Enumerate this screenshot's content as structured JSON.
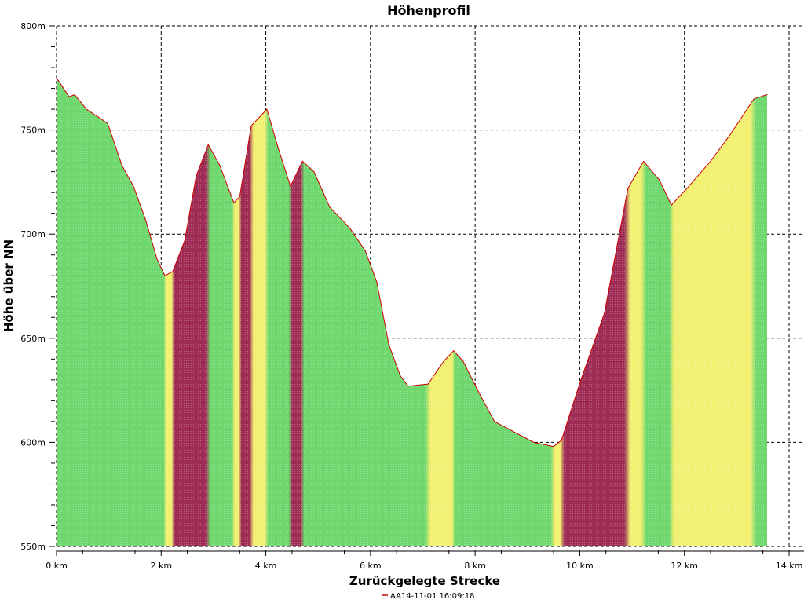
{
  "chart_data": {
    "type": "area",
    "title": "Höhenprofil",
    "xlabel": "Zurückgelegte Strecke",
    "ylabel": "Höhe über NN",
    "xlim": [
      0,
      14
    ],
    "ylim": [
      550,
      800
    ],
    "grid": true,
    "x_ticks": [
      "0 km",
      "2 km",
      "4 km",
      "6 km",
      "8 km",
      "10 km",
      "12 km",
      "14 km"
    ],
    "x_tick_values": [
      0,
      2,
      4,
      6,
      8,
      10,
      12,
      14
    ],
    "y_ticks": [
      "550m",
      "600m",
      "650m",
      "700m",
      "750m",
      "800m"
    ],
    "y_tick_values": [
      550,
      600,
      650,
      700,
      750,
      800
    ],
    "legend": {
      "position": "bottom",
      "entries": [
        {
          "label": "AA14-11-01 16:09:18",
          "color": "#cc0000"
        }
      ]
    },
    "series": [
      {
        "name": "AA14-11-01 16:09:18",
        "x": [
          0,
          0.24,
          0.35,
          0.57,
          0.87,
          0.98,
          1.25,
          1.47,
          1.7,
          1.92,
          2.07,
          2.22,
          2.45,
          2.67,
          2.9,
          3.12,
          3.39,
          3.5,
          3.72,
          4.02,
          4.24,
          4.47,
          4.7,
          4.92,
          5.22,
          5.6,
          5.9,
          6.12,
          6.35,
          6.57,
          6.72,
          7.1,
          7.4,
          7.59,
          7.77,
          8.07,
          8.37,
          8.82,
          9.12,
          9.5,
          9.65,
          10.02,
          10.47,
          10.92,
          11.22,
          11.52,
          11.75,
          12.05,
          12.5,
          12.88,
          13.33,
          13.58
        ],
        "y": [
          775,
          766,
          767,
          760,
          755,
          753,
          733,
          723,
          707,
          688,
          680,
          682,
          697,
          728,
          743,
          733,
          715,
          718,
          752,
          760,
          741,
          723,
          735,
          730,
          713,
          703,
          692,
          677,
          647,
          632,
          627,
          628,
          639,
          644,
          639,
          624,
          610,
          604,
          600,
          598,
          601,
          630,
          662,
          722,
          735,
          726,
          714,
          722,
          735,
          748,
          765,
          767
        ]
      }
    ],
    "colors": {
      "line": "#cc0000",
      "flat": "#6ed86e",
      "moderate": "#f2f070",
      "steep": "#9e2c55",
      "grid": "#000000"
    }
  }
}
